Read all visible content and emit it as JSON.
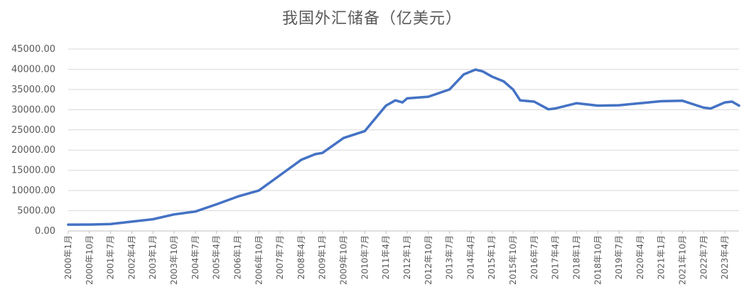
{
  "chart_data": {
    "type": "line",
    "title": "我国外汇储备（亿美元）",
    "xlabel": "",
    "ylabel": "",
    "ylim": [
      0,
      45000
    ],
    "yticks": [
      "0.00",
      "5000.00",
      "10000.00",
      "15000.00",
      "20000.00",
      "25000.00",
      "30000.00",
      "35000.00",
      "40000.00",
      "45000.00"
    ],
    "xticks": [
      "2000年1月",
      "2000年10月",
      "2001年7月",
      "2002年4月",
      "2003年1月",
      "2003年10月",
      "2004年7月",
      "2005年4月",
      "2006年1月",
      "2006年10月",
      "2007年7月",
      "2008年4月",
      "2009年1月",
      "2009年10月",
      "2010年7月",
      "2011年4月",
      "2012年1月",
      "2012年10月",
      "2013年7月",
      "2014年4月",
      "2015年1月",
      "2015年10月",
      "2016年7月",
      "2017年4月",
      "2018年1月",
      "2018年10月",
      "2019年7月",
      "2020年4月",
      "2021年1月",
      "2021年10月",
      "2022年7月",
      "2023年4月"
    ],
    "grid": true,
    "legend": "none",
    "line_color": "#4472C4",
    "series": [
      {
        "name": "",
        "x": [
          "2000-01",
          "2000-10",
          "2001-07",
          "2002-04",
          "2003-01",
          "2003-10",
          "2004-07",
          "2005-04",
          "2006-01",
          "2006-10",
          "2007-07",
          "2008-04",
          "2008-10",
          "2009-01",
          "2009-10",
          "2010-07",
          "2011-04",
          "2011-08",
          "2011-11",
          "2012-01",
          "2012-10",
          "2013-07",
          "2014-01",
          "2014-06",
          "2014-09",
          "2015-01",
          "2015-06",
          "2015-10",
          "2016-01",
          "2016-07",
          "2017-01",
          "2017-04",
          "2018-01",
          "2018-10",
          "2019-07",
          "2020-04",
          "2021-01",
          "2021-10",
          "2022-07",
          "2022-10",
          "2023-04",
          "2023-07",
          "2023-10"
        ],
        "values": [
          1560,
          1580,
          1700,
          2300,
          2900,
          4100,
          4800,
          6600,
          8500,
          10000,
          13800,
          17600,
          19000,
          19300,
          23000,
          24700,
          31000,
          32300,
          31800,
          32800,
          33200,
          35000,
          38700,
          39900,
          39500,
          38200,
          37000,
          35000,
          32300,
          32000,
          30100,
          30300,
          31600,
          31000,
          31100,
          31600,
          32100,
          32200,
          30500,
          30300,
          31800,
          32000,
          31000
        ]
      }
    ]
  }
}
